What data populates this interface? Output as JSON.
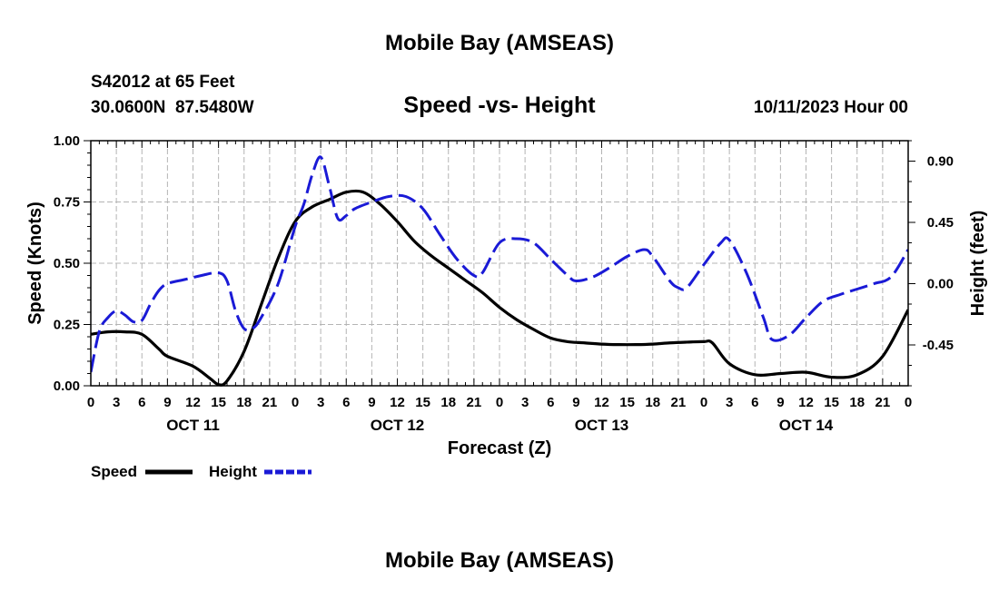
{
  "page": {
    "title": "Mobile Bay (AMSEAS)",
    "footer_title": "Mobile Bay (AMSEAS)",
    "station": "S42012 at 65 Feet",
    "coords": "30.0600N  87.5480W",
    "chart_subtitle": "Speed -vs- Height",
    "run_time": "10/11/2023 Hour 00"
  },
  "chart_data": {
    "type": "line",
    "title": "Speed -vs- Height",
    "xlabel": "Forecast (Z)",
    "ylabel": "Speed (Knots)",
    "y2label": "Height (feet)",
    "x_range_hours": [
      0,
      96
    ],
    "ylim": [
      0,
      1.0
    ],
    "y2lim": [
      -0.75,
      1.05
    ],
    "yticks": [
      0.0,
      0.25,
      0.5,
      0.75,
      1.0
    ],
    "ytick_labels": [
      "0.00",
      "0.25",
      "0.50",
      "0.75",
      "1.00"
    ],
    "y2ticks": [
      -0.45,
      0.0,
      0.45,
      0.9
    ],
    "y2tick_labels": [
      "-0.45",
      "0.00",
      "0.45",
      "0.90"
    ],
    "x_tick_step_hours": 3,
    "x_tick_labels": [
      "0",
      "3",
      "6",
      "9",
      "12",
      "15",
      "18",
      "21",
      "0",
      "3",
      "6",
      "9",
      "12",
      "15",
      "18",
      "21",
      "0",
      "3",
      "6",
      "9",
      "12",
      "15",
      "18",
      "21",
      "0",
      "3",
      "6",
      "9",
      "12",
      "15",
      "18",
      "21",
      "0"
    ],
    "day_labels": [
      {
        "hour": 12,
        "label": "OCT 11"
      },
      {
        "hour": 36,
        "label": "OCT 12"
      },
      {
        "hour": 60,
        "label": "OCT 13"
      },
      {
        "hour": 84,
        "label": "OCT 14"
      }
    ],
    "grid": true,
    "legend": [
      {
        "name": "Speed",
        "color": "#000000",
        "style": "solid"
      },
      {
        "name": "Height",
        "color": "#1a1ad6",
        "style": "dashed"
      }
    ],
    "series": [
      {
        "name": "Speed",
        "axis": "left",
        "color": "#000000",
        "style": "solid",
        "x": [
          0,
          2,
          4,
          6,
          8,
          9,
          12,
          14,
          15,
          16,
          18,
          20,
          22,
          24,
          26,
          28,
          30,
          32,
          34,
          36,
          38,
          40,
          42,
          44,
          46,
          48,
          50,
          52,
          54,
          56,
          58,
          60,
          62,
          64,
          66,
          68,
          70,
          72,
          73,
          75,
          78,
          81,
          84,
          87,
          90,
          93,
          96
        ],
        "y": [
          0.21,
          0.22,
          0.22,
          0.21,
          0.15,
          0.12,
          0.08,
          0.03,
          0.005,
          0.02,
          0.14,
          0.33,
          0.52,
          0.67,
          0.73,
          0.76,
          0.79,
          0.79,
          0.74,
          0.67,
          0.59,
          0.53,
          0.48,
          0.43,
          0.38,
          0.32,
          0.27,
          0.23,
          0.195,
          0.18,
          0.175,
          0.17,
          0.168,
          0.168,
          0.17,
          0.175,
          0.178,
          0.18,
          0.175,
          0.09,
          0.045,
          0.05,
          0.055,
          0.035,
          0.045,
          0.12,
          0.31
        ]
      },
      {
        "name": "Height",
        "axis": "right",
        "color": "#1a1ad6",
        "style": "dashed",
        "x": [
          0,
          1,
          2,
          3,
          4,
          5,
          6,
          7,
          8,
          9,
          11,
          13,
          15,
          16,
          17,
          18,
          19,
          20,
          22,
          24,
          25,
          26,
          27,
          28,
          29,
          30,
          31,
          33,
          35,
          37,
          39,
          41,
          43,
          45,
          46,
          48,
          50,
          52,
          54,
          56,
          57,
          59,
          61,
          63,
          65,
          66,
          68,
          69,
          70,
          72,
          74,
          75,
          77,
          79,
          80,
          82,
          84,
          86,
          88,
          90,
          92,
          94,
          96
        ],
        "y": [
          -0.65,
          -0.35,
          -0.25,
          -0.2,
          -0.23,
          -0.28,
          -0.27,
          -0.15,
          -0.05,
          0.0,
          0.03,
          0.06,
          0.08,
          0.02,
          -0.2,
          -0.33,
          -0.33,
          -0.25,
          0.0,
          0.42,
          0.58,
          0.8,
          0.93,
          0.72,
          0.48,
          0.5,
          0.55,
          0.6,
          0.64,
          0.64,
          0.55,
          0.36,
          0.18,
          0.06,
          0.08,
          0.3,
          0.33,
          0.3,
          0.18,
          0.06,
          0.02,
          0.05,
          0.12,
          0.2,
          0.25,
          0.2,
          0.02,
          -0.03,
          -0.03,
          0.14,
          0.3,
          0.32,
          0.08,
          -0.25,
          -0.41,
          -0.38,
          -0.25,
          -0.13,
          -0.08,
          -0.04,
          0.0,
          0.05,
          0.25
        ]
      }
    ]
  }
}
